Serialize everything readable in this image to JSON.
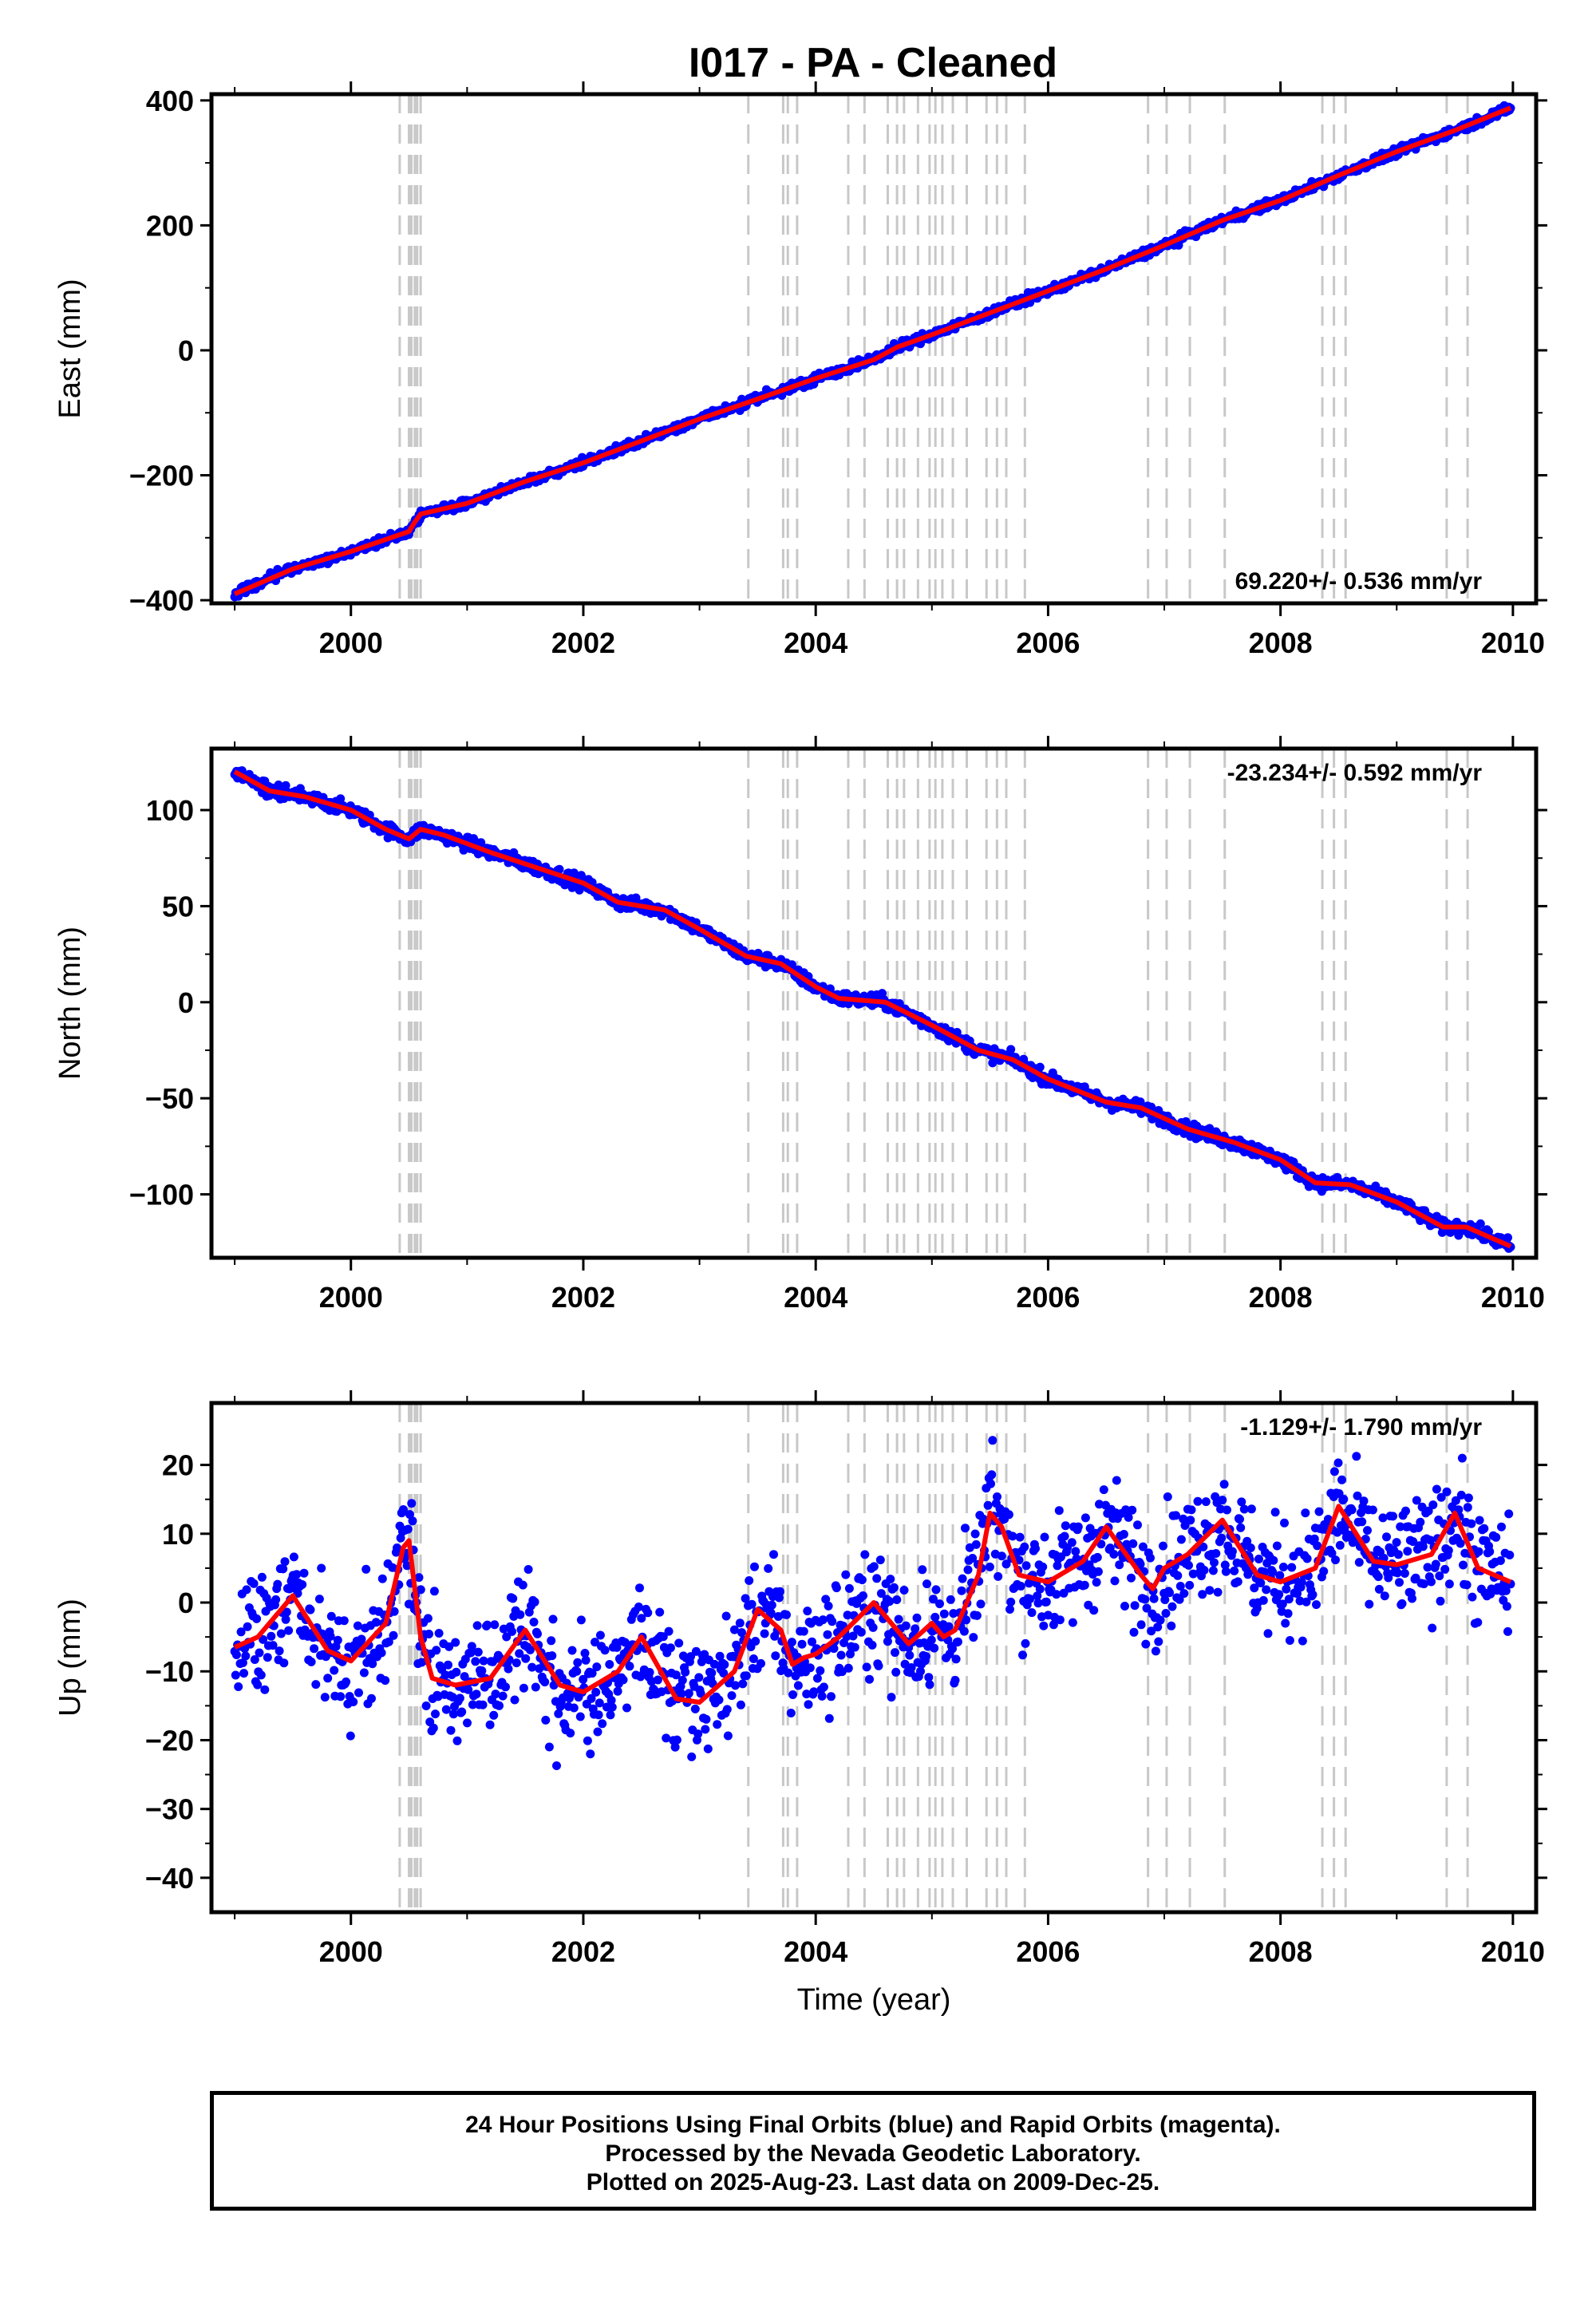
{
  "title": "I017  - PA - Cleaned",
  "footer": {
    "line1": "24 Hour Positions Using Final Orbits (blue) and Rapid Orbits (magenta).",
    "line2": "Processed by the Nevada Geodetic Laboratory.",
    "line3": "Plotted on 2025-Aug-23. Last data on 2009-Dec-25."
  },
  "colors": {
    "data": "#0000ff",
    "model": "#ff0000",
    "steps": "#c8c8c8",
    "frame": "#000000"
  },
  "chart_data": [
    {
      "type": "scatter",
      "ylabel": "East (mm)",
      "xlabel": "",
      "xlim": [
        1998.8,
        2010.2
      ],
      "ylim": [
        -405,
        410
      ],
      "yticks": [
        -400,
        -200,
        0,
        200,
        400
      ],
      "ytick_labels": [
        "−400",
        "−200",
        "0",
        "200",
        "400"
      ],
      "xticks": [
        2000,
        2002,
        2004,
        2006,
        2008,
        2010
      ],
      "xtick_labels": [
        "2000",
        "2002",
        "2004",
        "2006",
        "2008",
        "2010"
      ],
      "rate_text": "69.220+/- 0.536 mm/yr",
      "rate_placement": "bottom-right",
      "series": [
        {
          "role": "model",
          "x": [
            1999.0,
            1999.5,
            2000.0,
            2000.5,
            2000.55,
            2000.6,
            2001.0,
            2001.5,
            2002.0,
            2002.5,
            2003.0,
            2003.5,
            2004.0,
            2004.5,
            2004.7,
            2005.0,
            2005.5,
            2006.0,
            2006.5,
            2007.0,
            2007.5,
            2008.0,
            2008.5,
            2009.0,
            2009.5,
            2009.98
          ],
          "y": [
            -390,
            -350,
            -322,
            -290,
            -275,
            -262,
            -245,
            -210,
            -180,
            -145,
            -110,
            -78,
            -45,
            -15,
            5,
            25,
            60,
            95,
            130,
            168,
            208,
            240,
            280,
            318,
            352,
            388
          ]
        }
      ],
      "scatter_spread": 5
    },
    {
      "type": "scatter",
      "ylabel": "North (mm)",
      "xlabel": "",
      "xlim": [
        1998.8,
        2010.2
      ],
      "ylim": [
        -133,
        132
      ],
      "yticks": [
        -100,
        -50,
        0,
        50,
        100
      ],
      "ytick_labels": [
        "−100",
        "−50",
        "0",
        "50",
        "100"
      ],
      "xticks": [
        2000,
        2002,
        2004,
        2006,
        2008,
        2010
      ],
      "xtick_labels": [
        "2000",
        "2002",
        "2004",
        "2006",
        "2008",
        "2010"
      ],
      "rate_text": "-23.234+/- 0.592 mm/yr",
      "rate_placement": "top-right",
      "series": [
        {
          "role": "model",
          "x": [
            1999.0,
            1999.3,
            1999.6,
            2000.0,
            2000.3,
            2000.5,
            2000.6,
            2000.8,
            2001.2,
            2001.6,
            2002.0,
            2002.3,
            2002.7,
            2003.0,
            2003.4,
            2003.7,
            2004.0,
            2004.2,
            2004.6,
            2005.0,
            2005.4,
            2005.7,
            2006.0,
            2006.5,
            2006.8,
            2007.2,
            2007.6,
            2008.0,
            2008.3,
            2008.6,
            2009.0,
            2009.4,
            2009.6,
            2009.98
          ],
          "y": [
            120,
            110,
            107,
            100,
            90,
            85,
            90,
            87,
            78,
            70,
            62,
            52,
            48,
            38,
            24,
            20,
            8,
            2,
            0,
            -12,
            -25,
            -30,
            -40,
            -52,
            -55,
            -66,
            -73,
            -82,
            -94,
            -95,
            -104,
            -117,
            -117,
            -127
          ]
        }
      ],
      "scatter_spread": 2.5
    },
    {
      "type": "scatter",
      "ylabel": "Up (mm)",
      "xlabel": "Time (year)",
      "xlim": [
        1998.8,
        2010.2
      ],
      "ylim": [
        -45,
        29
      ],
      "yticks": [
        -40,
        -30,
        -20,
        -10,
        0,
        10,
        20
      ],
      "ytick_labels": [
        "−40",
        "−30",
        "−20",
        "−10",
        "0",
        "10",
        "20"
      ],
      "xticks": [
        2000,
        2002,
        2004,
        2006,
        2008,
        2010
      ],
      "xtick_labels": [
        "2000",
        "2002",
        "2004",
        "2006",
        "2008",
        "2010"
      ],
      "rate_text": "-1.129+/- 1.790 mm/yr",
      "rate_placement": "top-right",
      "series": [
        {
          "role": "model",
          "x": [
            1999.0,
            1999.2,
            1999.5,
            1999.8,
            2000.0,
            2000.3,
            2000.45,
            2000.5,
            2000.6,
            2000.7,
            2000.9,
            2001.2,
            2001.5,
            2001.8,
            2002.0,
            2002.3,
            2002.5,
            2002.8,
            2003.0,
            2003.3,
            2003.5,
            2003.7,
            2003.8,
            2003.9,
            2004.0,
            2004.2,
            2004.5,
            2004.8,
            2005.0,
            2005.1,
            2005.2,
            2005.3,
            2005.4,
            2005.5,
            2005.6,
            2005.75,
            2006.0,
            2006.3,
            2006.5,
            2006.8,
            2006.9,
            2007.0,
            2007.2,
            2007.5,
            2007.8,
            2008.0,
            2008.3,
            2008.5,
            2008.8,
            2009.0,
            2009.3,
            2009.5,
            2009.7,
            2009.98
          ],
          "y": [
            -6.5,
            -5,
            1,
            -7,
            -8.5,
            -3,
            8,
            9,
            -5,
            -11,
            -12,
            -11,
            -4,
            -12,
            -13,
            -10,
            -5,
            -14,
            -14.5,
            -10,
            -1,
            -4,
            -9,
            -8,
            -7.5,
            -5,
            0,
            -6,
            -3,
            -5,
            -4,
            0,
            4,
            13,
            11,
            4,
            3,
            6,
            11,
            4,
            2,
            5,
            7,
            12,
            4,
            3,
            5,
            14,
            6,
            5.5,
            7,
            13,
            5,
            3
          ]
        }
      ],
      "scatter_spread": 6
    }
  ],
  "step_epochs": [
    2000.42,
    2000.5,
    2000.52,
    2000.55,
    2000.57,
    2000.6,
    2003.42,
    2003.72,
    2003.76,
    2003.84,
    2004.28,
    2004.42,
    2004.62,
    2004.7,
    2004.76,
    2004.88,
    2004.98,
    2005.03,
    2005.09,
    2005.18,
    2005.3,
    2005.47,
    2005.56,
    2005.64,
    2005.8,
    2006.86,
    2007.02,
    2007.22,
    2007.52,
    2008.36,
    2008.46,
    2008.56,
    2009.43,
    2009.61
  ]
}
